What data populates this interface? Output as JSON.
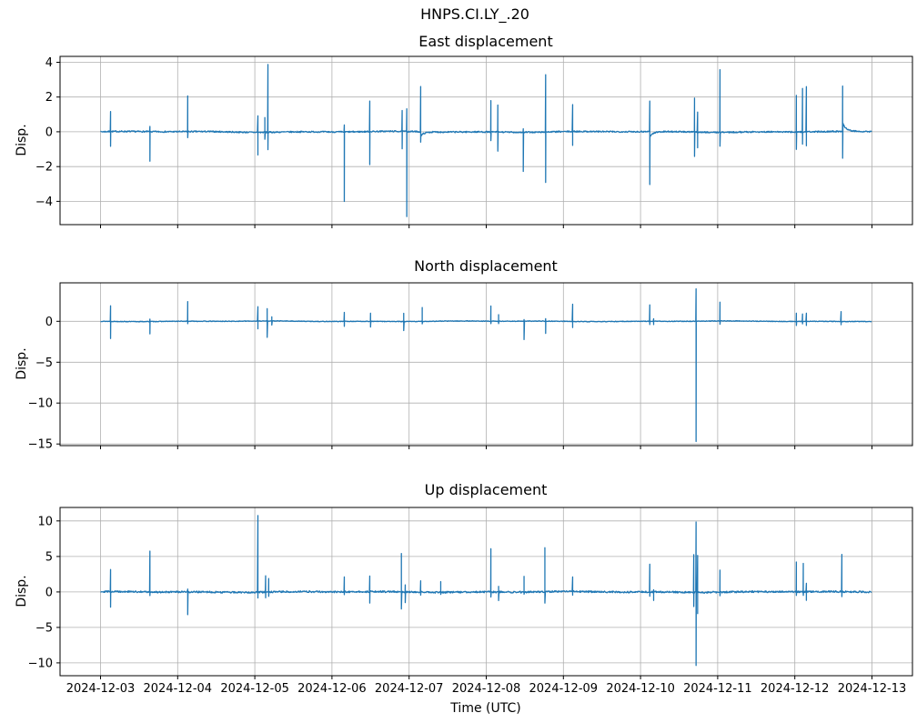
{
  "figure": {
    "suptitle": "HNPS.CI.LY_.20",
    "xlabel": "Time (UTC)",
    "ylabel": "Disp.",
    "background_color": "#ffffff",
    "line_color": "#1f77b4",
    "grid_color": "#b0b0b0",
    "spine_color": "#000000",
    "text_color": "#000000"
  },
  "chart_data": [
    {
      "type": "line",
      "title": "East displacement",
      "ylabel": "Disp.",
      "line_color": "#1f77b4",
      "x_start_date": "2024-12-03",
      "x_end_date": "2024-12-13",
      "x_unit": "days since 2024-12-03 00:00 UTC",
      "xlim_days": [
        -0.525,
        10.525
      ],
      "xtick_days": [
        0,
        1,
        2,
        3,
        4,
        5,
        6,
        7,
        8,
        9,
        10
      ],
      "xtick_labels": [
        "2024-12-03",
        "2024-12-04",
        "2024-12-05",
        "2024-12-06",
        "2024-12-07",
        "2024-12-08",
        "2024-12-09",
        "2024-12-10",
        "2024-12-11",
        "2024-12-12",
        "2024-12-13"
      ],
      "show_xtick_labels": false,
      "xlabel": "",
      "ylim": [
        -5.34,
        4.34
      ],
      "ytick_values": [
        -4,
        -2,
        0,
        2,
        4
      ],
      "ytick_labels": [
        "−4",
        "−2",
        "0",
        "2",
        "4"
      ],
      "grid": true,
      "baseline_value": 0,
      "noise": {
        "white": 0.04,
        "wander": 0.03
      },
      "seed": 7,
      "spikes_t_lo_hi_tail": [
        [
          0.13,
          -0.85,
          1.15
        ],
        [
          0.64,
          -1.7,
          0.3
        ],
        [
          1.13,
          -0.35,
          2.05
        ],
        [
          2.04,
          -1.3,
          0.95
        ],
        [
          2.13,
          -0.4,
          0.85
        ],
        [
          2.17,
          -1.0,
          3.9
        ],
        [
          3.16,
          -4.0,
          0.4
        ],
        [
          3.49,
          -1.9,
          1.75
        ],
        [
          3.91,
          -1.0,
          1.2
        ],
        [
          3.97,
          -4.9,
          1.3
        ],
        [
          4.15,
          -0.6,
          2.6,
          -0.25
        ],
        [
          5.06,
          -0.5,
          1.8
        ],
        [
          5.15,
          -1.1,
          1.55
        ],
        [
          5.48,
          -2.25,
          0.2
        ],
        [
          5.77,
          -2.9,
          3.3
        ],
        [
          6.12,
          -0.8,
          1.55
        ],
        [
          7.12,
          -3.05,
          1.75,
          -0.3
        ],
        [
          7.7,
          -1.4,
          1.95
        ],
        [
          7.74,
          -0.9,
          1.15
        ],
        [
          8.03,
          -0.8,
          3.6
        ],
        [
          9.02,
          -1.0,
          2.1
        ],
        [
          9.1,
          -0.7,
          2.5
        ],
        [
          9.15,
          -0.8,
          2.6
        ],
        [
          9.62,
          -1.55,
          2.6,
          0.5
        ]
      ]
    },
    {
      "type": "line",
      "title": "North displacement",
      "ylabel": "Disp.",
      "line_color": "#1f77b4",
      "x_start_date": "2024-12-03",
      "x_end_date": "2024-12-13",
      "x_unit": "days since 2024-12-03 00:00 UTC",
      "xlim_days": [
        -0.525,
        10.525
      ],
      "xtick_days": [
        0,
        1,
        2,
        3,
        4,
        5,
        6,
        7,
        8,
        9,
        10
      ],
      "xtick_labels": [
        "2024-12-03",
        "2024-12-04",
        "2024-12-05",
        "2024-12-06",
        "2024-12-07",
        "2024-12-08",
        "2024-12-09",
        "2024-12-10",
        "2024-12-11",
        "2024-12-12",
        "2024-12-13"
      ],
      "show_xtick_labels": false,
      "xlabel": "",
      "ylim": [
        -15.2,
        4.7
      ],
      "ytick_values": [
        -15,
        -10,
        -5,
        0
      ],
      "ytick_labels": [
        "−15",
        "−10",
        "−5",
        "0"
      ],
      "grid": true,
      "baseline_value": 0,
      "noise": {
        "white": 0.04,
        "wander": 0.04
      },
      "seed": 13,
      "spikes_t_lo_hi_tail": [
        [
          0.13,
          -2.1,
          1.9
        ],
        [
          0.64,
          -1.5,
          0.3
        ],
        [
          1.13,
          -0.3,
          2.4
        ],
        [
          2.04,
          -0.95,
          1.75
        ],
        [
          2.16,
          -2.0,
          1.5
        ],
        [
          2.22,
          -0.5,
          0.5
        ],
        [
          3.16,
          -0.6,
          1.1
        ],
        [
          3.5,
          -0.7,
          1.0
        ],
        [
          3.93,
          -1.1,
          1.0
        ],
        [
          4.17,
          -0.3,
          1.7
        ],
        [
          5.06,
          -0.3,
          1.85
        ],
        [
          5.16,
          -0.3,
          0.8
        ],
        [
          5.49,
          -2.25,
          0.2
        ],
        [
          5.77,
          -1.5,
          0.3
        ],
        [
          6.12,
          -0.75,
          2.1
        ],
        [
          7.12,
          -0.4,
          2.0
        ],
        [
          7.17,
          -0.4,
          0.3
        ],
        [
          7.72,
          -14.7,
          3.95
        ],
        [
          8.03,
          -0.4,
          2.3
        ],
        [
          9.02,
          -0.5,
          1.0
        ],
        [
          9.1,
          -0.3,
          0.9
        ],
        [
          9.15,
          -0.5,
          1.0
        ],
        [
          9.6,
          -0.4,
          1.2
        ]
      ]
    },
    {
      "type": "line",
      "title": "Up displacement",
      "ylabel": "Disp.",
      "line_color": "#1f77b4",
      "x_start_date": "2024-12-03",
      "x_end_date": "2024-12-13",
      "x_unit": "days since 2024-12-03 00:00 UTC",
      "xlim_days": [
        -0.525,
        10.525
      ],
      "xtick_days": [
        0,
        1,
        2,
        3,
        4,
        5,
        6,
        7,
        8,
        9,
        10
      ],
      "xtick_labels": [
        "2024-12-03",
        "2024-12-04",
        "2024-12-05",
        "2024-12-06",
        "2024-12-07",
        "2024-12-08",
        "2024-12-09",
        "2024-12-10",
        "2024-12-11",
        "2024-12-12",
        "2024-12-13"
      ],
      "show_xtick_labels": true,
      "xlabel": "Time (UTC)",
      "ylim": [
        -11.8,
        11.9
      ],
      "ytick_values": [
        -10,
        -5,
        0,
        5,
        10
      ],
      "ytick_labels": [
        "−10",
        "−5",
        "0",
        "5",
        "10"
      ],
      "grid": true,
      "baseline_value": 0,
      "noise": {
        "white": 0.12,
        "wander": 0.06
      },
      "seed": 29,
      "spikes_t_lo_hi_tail": [
        [
          0.13,
          -2.2,
          3.1
        ],
        [
          0.64,
          -0.5,
          5.75
        ],
        [
          1.13,
          -3.2,
          0.4
        ],
        [
          2.04,
          -0.8,
          10.8
        ],
        [
          2.14,
          -0.8,
          2.3
        ],
        [
          2.18,
          -0.6,
          1.9
        ],
        [
          3.16,
          -0.4,
          2.1
        ],
        [
          3.49,
          -1.6,
          2.2
        ],
        [
          3.9,
          -2.4,
          5.4
        ],
        [
          3.95,
          -1.5,
          1.0
        ],
        [
          4.15,
          -0.4,
          1.6
        ],
        [
          4.41,
          -0.3,
          1.5
        ],
        [
          5.06,
          -0.7,
          6.1
        ],
        [
          5.16,
          -1.2,
          0.8
        ],
        [
          5.49,
          -0.3,
          2.2
        ],
        [
          5.76,
          -1.6,
          6.2
        ],
        [
          6.12,
          -0.5,
          2.05
        ],
        [
          7.12,
          -0.6,
          3.9
        ],
        [
          7.17,
          -1.2,
          0.3
        ],
        [
          7.69,
          -2.0,
          5.3
        ],
        [
          7.72,
          -10.3,
          9.9
        ],
        [
          7.74,
          -3.0,
          5.2
        ],
        [
          8.03,
          -0.5,
          3.1
        ],
        [
          9.02,
          -0.5,
          4.2
        ],
        [
          9.11,
          -0.5,
          4.0
        ],
        [
          9.15,
          -1.2,
          1.2
        ],
        [
          9.61,
          -0.7,
          5.25
        ]
      ]
    }
  ]
}
